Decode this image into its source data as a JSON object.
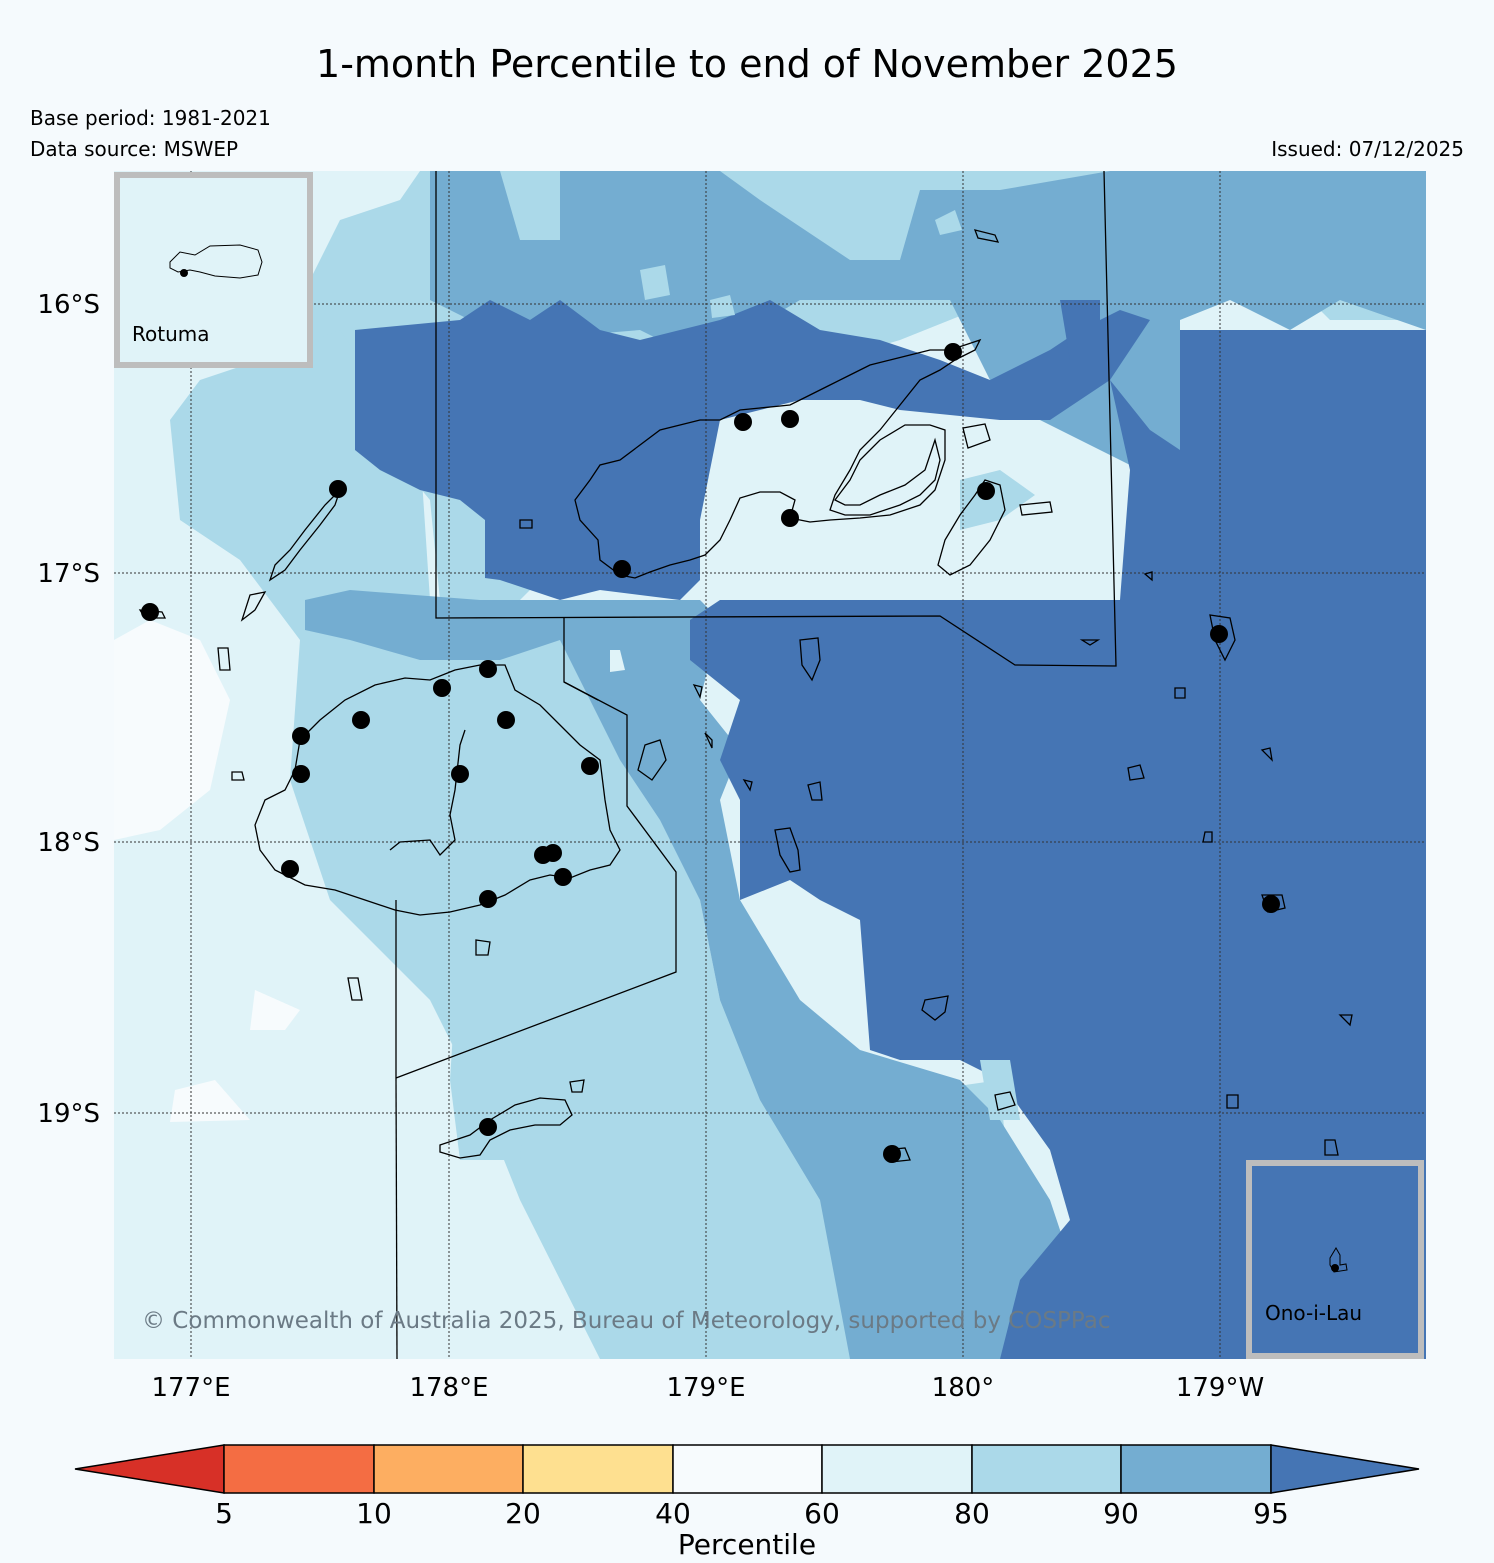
{
  "header": {
    "title": "1-month Percentile to end of November 2025",
    "base_period": "Base period: 1981-2021",
    "data_source": "Data source: MSWEP",
    "issued": "Issued: 07/12/2025"
  },
  "map": {
    "lat_labels": [
      "16°S",
      "17°S",
      "18°S",
      "19°S"
    ],
    "lon_labels": [
      "177°E",
      "178°E",
      "179°E",
      "180°",
      "179°W"
    ],
    "copyright": "© Commonwealth of Australia 2025, Bureau of Meteorology, supported by COSPPac",
    "insets": {
      "rotuma": "Rotuma",
      "ono_i_lau": "Ono-i-Lau"
    }
  },
  "colorbar": {
    "label": "Percentile",
    "ticks": [
      "5",
      "10",
      "20",
      "40",
      "60",
      "80",
      "90",
      "95"
    ],
    "colors": {
      "below_5": "#d73027",
      "5_10": "#f46d43",
      "10_20": "#fdae61",
      "20_40": "#fee090",
      "40_60": "#f7fbfd",
      "60_80": "#e0f3f8",
      "80_90": "#abd9e9",
      "90_95": "#74add1",
      "above_95": "#4575b4"
    }
  }
}
